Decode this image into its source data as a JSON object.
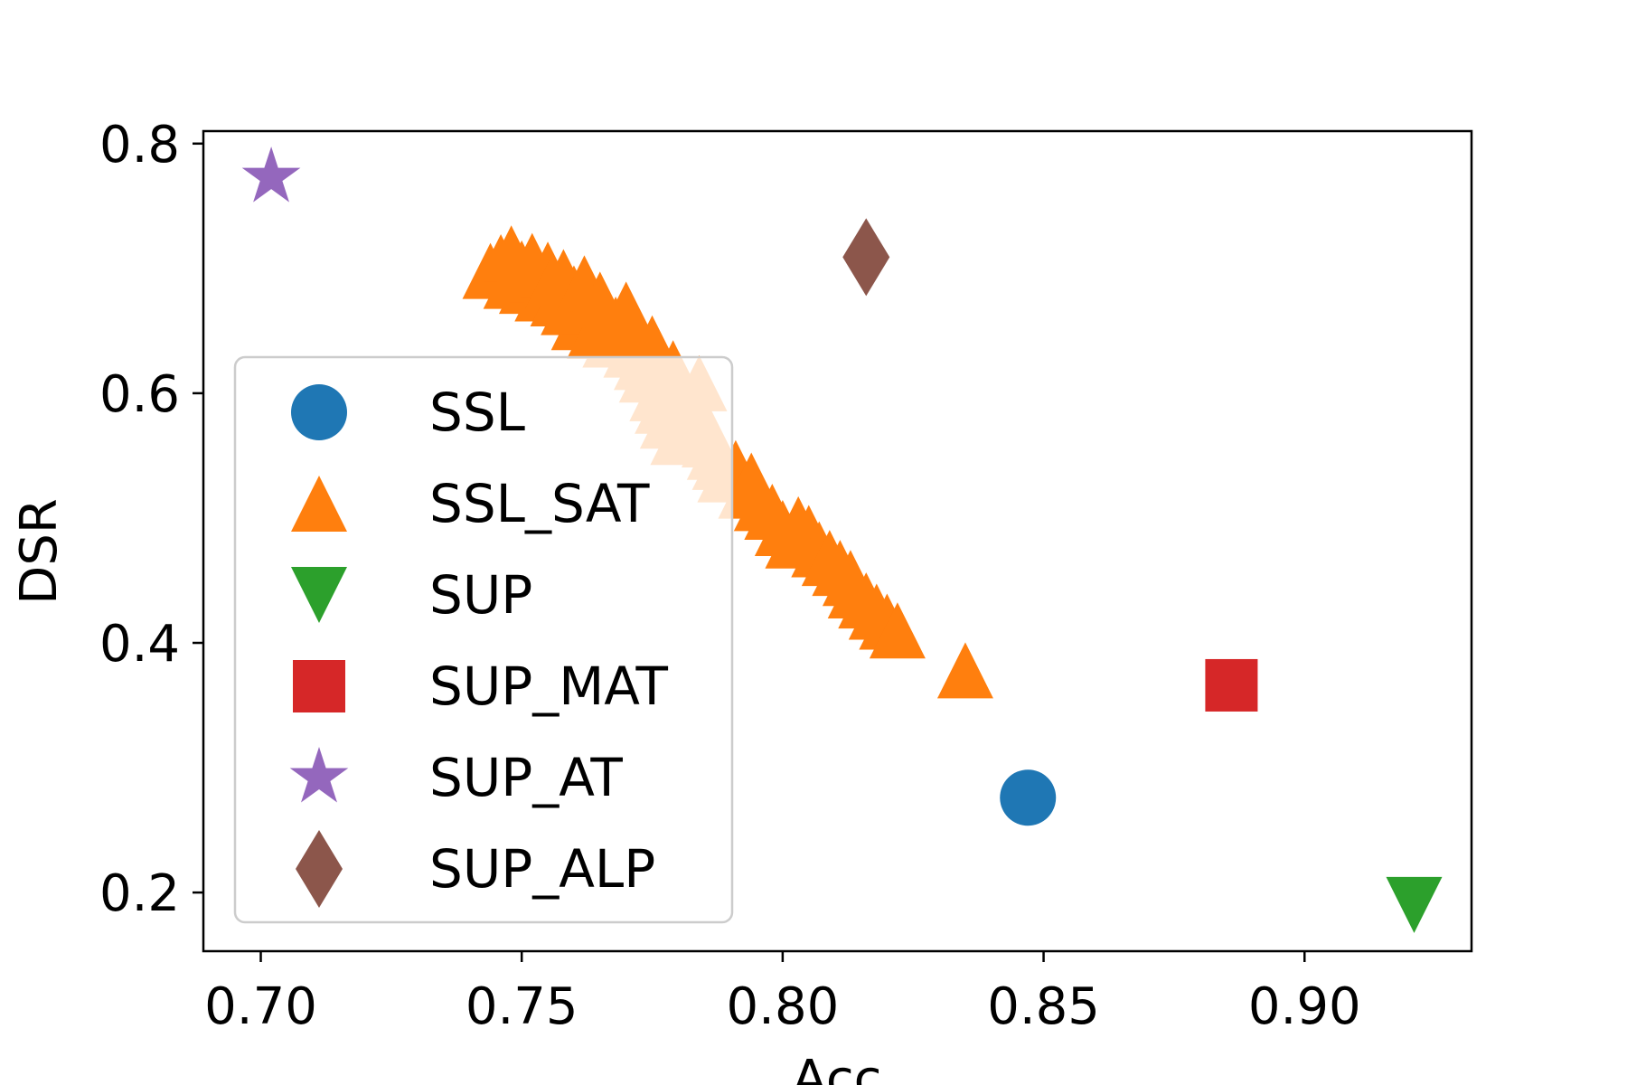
{
  "chart_data": {
    "type": "scatter",
    "title": "",
    "xlabel": "Acc",
    "ylabel": "DSR",
    "xlim": [
      0.689,
      0.932
    ],
    "ylim": [
      0.153,
      0.81
    ],
    "xticks": [
      0.7,
      0.75,
      0.8,
      0.85,
      0.9
    ],
    "xtick_labels": [
      "0.70",
      "0.75",
      "0.80",
      "0.85",
      "0.90"
    ],
    "yticks": [
      0.2,
      0.4,
      0.6,
      0.8
    ],
    "ytick_labels": [
      "0.2",
      "0.4",
      "0.6",
      "0.8"
    ],
    "grid": false,
    "legend_position": "center-left",
    "series": [
      {
        "name": "SSL",
        "marker": "circle",
        "color": "#1f77b4",
        "points": [
          [
            0.847,
            0.276
          ]
        ]
      },
      {
        "name": "SSL_SAT",
        "marker": "triangle-up",
        "color": "#ff7f0e",
        "points": [
          [
            0.744,
            0.698
          ],
          [
            0.746,
            0.705
          ],
          [
            0.748,
            0.712
          ],
          [
            0.748,
            0.69
          ],
          [
            0.75,
            0.7
          ],
          [
            0.751,
            0.686
          ],
          [
            0.752,
            0.706
          ],
          [
            0.753,
            0.695
          ],
          [
            0.754,
            0.68
          ],
          [
            0.755,
            0.699
          ],
          [
            0.756,
            0.69
          ],
          [
            0.757,
            0.676
          ],
          [
            0.758,
            0.693
          ],
          [
            0.759,
            0.669
          ],
          [
            0.76,
            0.68
          ],
          [
            0.761,
            0.657
          ],
          [
            0.762,
            0.688
          ],
          [
            0.763,
            0.67
          ],
          [
            0.764,
            0.65
          ],
          [
            0.765,
            0.675
          ],
          [
            0.766,
            0.662
          ],
          [
            0.767,
            0.643
          ],
          [
            0.768,
            0.655
          ],
          [
            0.77,
            0.667
          ],
          [
            0.771,
            0.635
          ],
          [
            0.772,
            0.648
          ],
          [
            0.773,
            0.625
          ],
          [
            0.774,
            0.615
          ],
          [
            0.775,
            0.64
          ],
          [
            0.776,
            0.6
          ],
          [
            0.777,
            0.59
          ],
          [
            0.778,
            0.578
          ],
          [
            0.779,
            0.62
          ],
          [
            0.78,
            0.565
          ],
          [
            0.781,
            0.598
          ],
          [
            0.782,
            0.583
          ],
          [
            0.783,
            0.59
          ],
          [
            0.784,
            0.608
          ],
          [
            0.785,
            0.575
          ],
          [
            0.786,
            0.563
          ],
          [
            0.787,
            0.553
          ],
          [
            0.788,
            0.545
          ],
          [
            0.789,
            0.535
          ],
          [
            0.791,
            0.54
          ],
          [
            0.793,
            0.522
          ],
          [
            0.794,
            0.53
          ],
          [
            0.796,
            0.512
          ],
          [
            0.798,
            0.505
          ],
          [
            0.8,
            0.492
          ],
          [
            0.802,
            0.482
          ],
          [
            0.803,
            0.495
          ],
          [
            0.805,
            0.488
          ],
          [
            0.807,
            0.475
          ],
          [
            0.809,
            0.468
          ],
          [
            0.811,
            0.46
          ],
          [
            0.813,
            0.452
          ],
          [
            0.814,
            0.442
          ],
          [
            0.816,
            0.434
          ],
          [
            0.818,
            0.425
          ],
          [
            0.82,
            0.417
          ],
          [
            0.822,
            0.41
          ],
          [
            0.835,
            0.378
          ]
        ]
      },
      {
        "name": "SUP",
        "marker": "triangle-down",
        "color": "#2ca02c",
        "points": [
          [
            0.921,
            0.19
          ]
        ]
      },
      {
        "name": "SUP_MAT",
        "marker": "square",
        "color": "#d62728",
        "points": [
          [
            0.886,
            0.366
          ]
        ]
      },
      {
        "name": "SUP_AT",
        "marker": "star",
        "color": "#9467bd",
        "points": [
          [
            0.702,
            0.773
          ]
        ]
      },
      {
        "name": "SUP_ALP",
        "marker": "diamond",
        "color": "#8c564b",
        "points": [
          [
            0.816,
            0.709
          ]
        ]
      }
    ]
  }
}
